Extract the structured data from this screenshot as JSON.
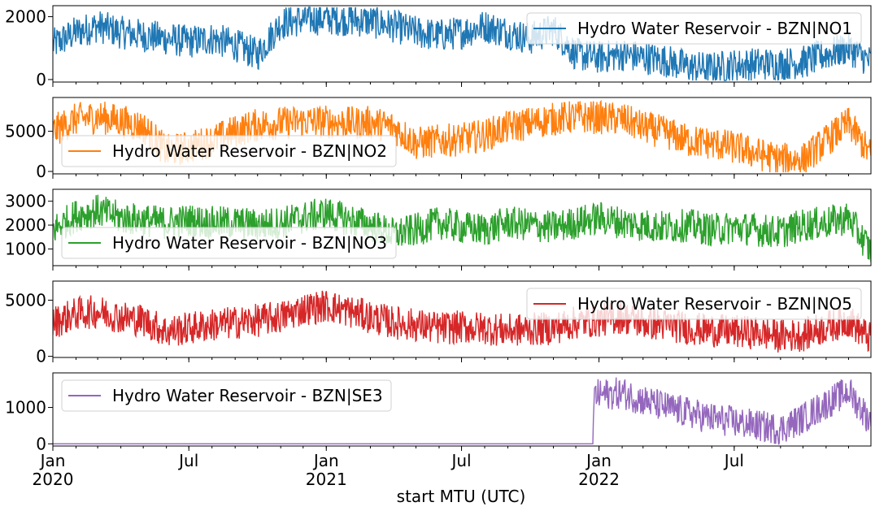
{
  "chart_data": [
    {
      "type": "line",
      "legend": "Hydro Water Reservoir - BZN|NO1",
      "legend_position": "upper-right",
      "color": "#1f77b4",
      "ylim": [
        -80,
        2350
      ],
      "yticks": [
        0,
        2000
      ],
      "series": [
        {
          "name": "Hydro Water Reservoir - BZN|NO1",
          "x": [
            "2020-01-01",
            "2020-02-01",
            "2020-03-01",
            "2020-04-01",
            "2020-05-01",
            "2020-06-01",
            "2020-07-01",
            "2020-08-01",
            "2020-09-01",
            "2020-10-01",
            "2020-11-01",
            "2020-12-01",
            "2021-01-01",
            "2021-02-01",
            "2021-03-01",
            "2021-04-01",
            "2021-05-01",
            "2021-06-01",
            "2021-07-01",
            "2021-08-01",
            "2021-09-01",
            "2021-10-01",
            "2021-11-01",
            "2021-12-01",
            "2022-01-01",
            "2022-02-01",
            "2022-03-01",
            "2022-04-01",
            "2022-05-01",
            "2022-06-01",
            "2022-07-01",
            "2022-08-01",
            "2022-09-01",
            "2022-10-01",
            "2022-11-01",
            "2022-12-01",
            "2022-12-31"
          ],
          "y": [
            1100,
            1500,
            1700,
            1500,
            1400,
            1300,
            1200,
            1300,
            1100,
            800,
            1800,
            1900,
            1950,
            1900,
            1850,
            1700,
            1500,
            1400,
            1500,
            1700,
            1500,
            1300,
            1600,
            800,
            700,
            800,
            700,
            600,
            400,
            350,
            450,
            500,
            500,
            550,
            800,
            1000,
            550
          ]
        }
      ]
    },
    {
      "type": "line",
      "legend": "Hydro Water Reservoir - BZN|NO2",
      "legend_position": "lower-left",
      "color": "#ff7f0e",
      "ylim": [
        -300,
        9200
      ],
      "yticks": [
        0,
        5000
      ],
      "series": [
        {
          "name": "Hydro Water Reservoir - BZN|NO2",
          "x": [
            "2020-01-01",
            "2020-02-01",
            "2020-03-01",
            "2020-04-01",
            "2020-05-01",
            "2020-06-01",
            "2020-07-01",
            "2020-08-01",
            "2020-09-01",
            "2020-10-01",
            "2020-11-01",
            "2020-12-01",
            "2021-01-01",
            "2021-02-01",
            "2021-03-01",
            "2021-04-01",
            "2021-05-01",
            "2021-06-01",
            "2021-07-01",
            "2021-08-01",
            "2021-09-01",
            "2021-10-01",
            "2021-11-01",
            "2021-12-01",
            "2022-01-01",
            "2022-02-01",
            "2022-03-01",
            "2022-04-01",
            "2022-05-01",
            "2022-06-01",
            "2022-07-01",
            "2022-08-01",
            "2022-09-01",
            "2022-10-01",
            "2022-11-01",
            "2022-12-01",
            "2022-12-31"
          ],
          "y": [
            5000,
            6500,
            6800,
            6300,
            5500,
            2500,
            3000,
            3800,
            5000,
            5800,
            6000,
            6200,
            6200,
            6000,
            6100,
            5500,
            3500,
            3800,
            4000,
            4500,
            5500,
            6000,
            6500,
            6800,
            6700,
            6500,
            5500,
            4800,
            3800,
            3500,
            3000,
            2200,
            1500,
            1500,
            3800,
            6000,
            2000
          ]
        }
      ]
    },
    {
      "type": "line",
      "legend": "Hydro Water Reservoir - BZN|NO3",
      "legend_position": "lower-left",
      "color": "#2ca02c",
      "ylim": [
        300,
        3500
      ],
      "yticks": [
        1000,
        2000,
        3000
      ],
      "series": [
        {
          "name": "Hydro Water Reservoir - BZN|NO3",
          "x": [
            "2020-01-01",
            "2020-02-01",
            "2020-03-01",
            "2020-04-01",
            "2020-05-01",
            "2020-06-01",
            "2020-07-01",
            "2020-08-01",
            "2020-09-01",
            "2020-10-01",
            "2020-11-01",
            "2020-12-01",
            "2021-01-01",
            "2021-02-01",
            "2021-03-01",
            "2021-04-01",
            "2021-05-01",
            "2021-06-01",
            "2021-07-01",
            "2021-08-01",
            "2021-09-01",
            "2021-10-01",
            "2021-11-01",
            "2021-12-01",
            "2022-01-01",
            "2022-02-01",
            "2022-03-01",
            "2022-04-01",
            "2022-05-01",
            "2022-06-01",
            "2022-07-01",
            "2022-08-01",
            "2022-09-01",
            "2022-10-01",
            "2022-11-01",
            "2022-12-01",
            "2022-12-31"
          ],
          "y": [
            1800,
            2400,
            2600,
            2300,
            2200,
            2100,
            2200,
            2100,
            2100,
            2000,
            2100,
            2300,
            2500,
            2200,
            2000,
            1600,
            1800,
            2100,
            1900,
            1800,
            2100,
            2000,
            1900,
            2100,
            2300,
            2100,
            2000,
            1900,
            2000,
            1800,
            1900,
            1800,
            1700,
            2000,
            2100,
            2300,
            900
          ]
        }
      ]
    },
    {
      "type": "line",
      "legend": "Hydro Water Reservoir - BZN|NO5",
      "legend_position": "upper-right",
      "color": "#d62728",
      "ylim": [
        -100,
        6700
      ],
      "yticks": [
        0,
        5000
      ],
      "series": [
        {
          "name": "Hydro Water Reservoir - BZN|NO5",
          "x": [
            "2020-01-01",
            "2020-02-01",
            "2020-03-01",
            "2020-04-01",
            "2020-05-01",
            "2020-06-01",
            "2020-07-01",
            "2020-08-01",
            "2020-09-01",
            "2020-10-01",
            "2020-11-01",
            "2020-12-01",
            "2021-01-01",
            "2021-02-01",
            "2021-03-01",
            "2021-04-01",
            "2021-05-01",
            "2021-06-01",
            "2021-07-01",
            "2021-08-01",
            "2021-09-01",
            "2021-10-01",
            "2021-11-01",
            "2021-12-01",
            "2022-01-01",
            "2022-02-01",
            "2022-03-01",
            "2022-04-01",
            "2022-05-01",
            "2022-06-01",
            "2022-07-01",
            "2022-08-01",
            "2022-09-01",
            "2022-10-01",
            "2022-11-01",
            "2022-12-01",
            "2022-12-31"
          ],
          "y": [
            3000,
            3800,
            4000,
            3500,
            3200,
            2200,
            2500,
            2800,
            3000,
            3200,
            3500,
            4200,
            4500,
            4000,
            3500,
            3000,
            2800,
            2500,
            2600,
            2500,
            2300,
            2400,
            2500,
            3000,
            3200,
            3500,
            3000,
            2800,
            2500,
            2300,
            2200,
            2100,
            1800,
            1900,
            2600,
            3200,
            1500
          ]
        }
      ]
    },
    {
      "type": "line",
      "legend": "Hydro Water Reservoir - BZN|SE3",
      "legend_position": "upper-left",
      "color": "#9467bd",
      "ylim": [
        -60,
        1950
      ],
      "yticks": [
        0,
        1000
      ],
      "series": [
        {
          "name": "Hydro Water Reservoir - BZN|SE3",
          "x": [
            "2020-01-01",
            "2020-07-01",
            "2021-01-01",
            "2021-07-01",
            "2021-12-24",
            "2021-12-25",
            "2022-01-01",
            "2022-02-01",
            "2022-03-01",
            "2022-04-01",
            "2022-05-01",
            "2022-06-01",
            "2022-07-01",
            "2022-08-01",
            "2022-09-01",
            "2022-10-01",
            "2022-11-01",
            "2022-12-01",
            "2022-12-31"
          ],
          "y": [
            0,
            0,
            0,
            0,
            0,
            1300,
            1350,
            1400,
            1200,
            1000,
            850,
            700,
            600,
            500,
            400,
            700,
            1100,
            1450,
            600
          ]
        }
      ]
    }
  ],
  "x_axis": {
    "label": "start MTU (UTC)",
    "range": [
      "2020-01-01",
      "2022-12-31"
    ],
    "major_ticks": [
      {
        "date": "2020-01-01",
        "label": "Jan",
        "year": "2020"
      },
      {
        "date": "2020-07-01",
        "label": "Jul",
        "year": ""
      },
      {
        "date": "2021-01-01",
        "label": "Jan",
        "year": "2021"
      },
      {
        "date": "2021-07-01",
        "label": "Jul",
        "year": ""
      },
      {
        "date": "2022-01-01",
        "label": "Jan",
        "year": "2022"
      },
      {
        "date": "2022-07-01",
        "label": "Jul",
        "year": ""
      }
    ],
    "minor_tick_interval": "month"
  },
  "shared_x": true,
  "grid": false
}
